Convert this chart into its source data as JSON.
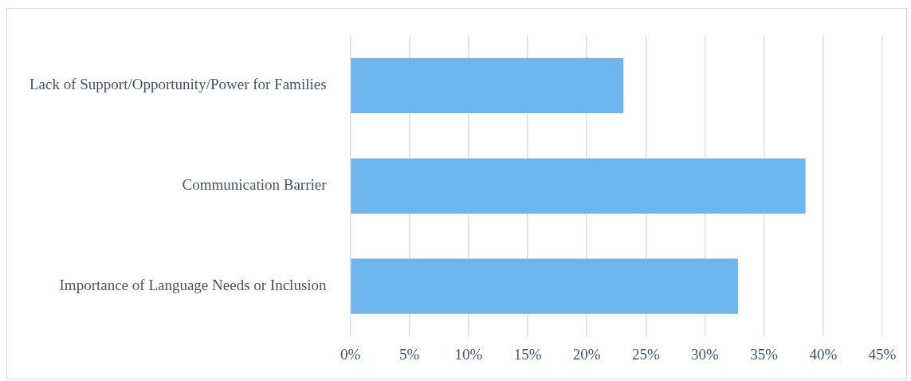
{
  "chart_data": {
    "type": "bar",
    "orientation": "horizontal",
    "categories": [
      "Lack of Support/Opportunity/Power for Families",
      "Communication Barrier",
      "Importance of Language Needs or Inclusion"
    ],
    "values": [
      23.1,
      38.5,
      32.8
    ],
    "color": "#6cb6f2",
    "xlim": [
      0,
      45
    ],
    "xticks": [
      {
        "value": 0,
        "label": "0%"
      },
      {
        "value": 5,
        "label": "5%"
      },
      {
        "value": 10,
        "label": "10%"
      },
      {
        "value": 15,
        "label": "15%"
      },
      {
        "value": 20,
        "label": "20%"
      },
      {
        "value": 25,
        "label": "25%"
      },
      {
        "value": 30,
        "label": "30%"
      },
      {
        "value": 35,
        "label": "35%"
      },
      {
        "value": 40,
        "label": "40%"
      },
      {
        "value": 45,
        "label": "45%"
      }
    ],
    "grid": "x",
    "legend": false
  }
}
